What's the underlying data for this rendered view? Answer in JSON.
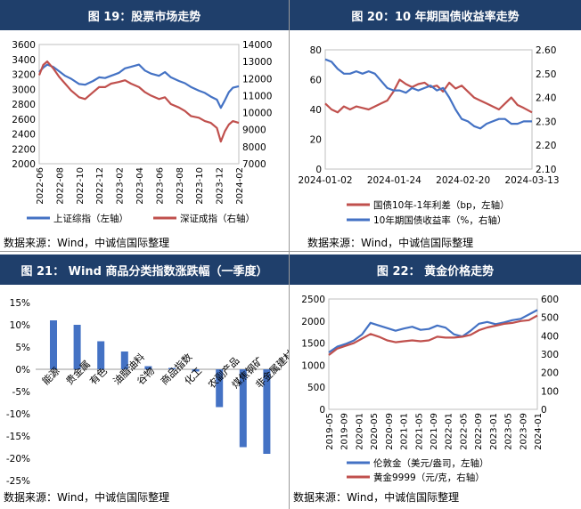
{
  "panels": [
    {
      "title": "图 19：股票市场走势",
      "source": "数据来源：Wind，中诚信国际整理",
      "chart_data": {
        "type": "line",
        "x_ticks": [
          "2022-06",
          "2022-08",
          "2022-10",
          "2022-12",
          "2023-02",
          "2023-04",
          "2023-06",
          "2023-08",
          "2023-10",
          "2023-12",
          "2024-02"
        ],
        "left_axis": {
          "ticks": [
            "2000",
            "2200",
            "2400",
            "2600",
            "2800",
            "3000",
            "3200",
            "3400",
            "3600"
          ],
          "range": [
            2000,
            3600
          ]
        },
        "right_axis": {
          "ticks": [
            "7000",
            "8000",
            "9000",
            "10000",
            "11000",
            "12000",
            "13000",
            "14000"
          ],
          "range": [
            7000,
            14000
          ]
        },
        "legend": "bottom",
        "series": [
          {
            "name": "上证综指（左轴）",
            "axis": "left",
            "color": "#4472c4",
            "x": [
              0,
              0.02,
              0.04,
              0.07,
              0.1,
              0.13,
              0.16,
              0.2,
              0.23,
              0.27,
              0.3,
              0.33,
              0.36,
              0.4,
              0.43,
              0.46,
              0.5,
              0.53,
              0.56,
              0.6,
              0.63,
              0.66,
              0.7,
              0.73,
              0.76,
              0.8,
              0.83,
              0.86,
              0.89,
              0.91,
              0.93,
              0.95,
              0.97,
              1.0
            ],
            "values": [
              3230,
              3290,
              3330,
              3300,
              3240,
              3180,
              3140,
              3070,
              3060,
              3110,
              3160,
              3150,
              3180,
              3220,
              3280,
              3300,
              3330,
              3250,
              3210,
              3180,
              3230,
              3160,
              3110,
              3080,
              3030,
              2980,
              2950,
              2900,
              2860,
              2750,
              2850,
              2960,
              3020,
              3040
            ]
          },
          {
            "name": "深证成指（右轴）",
            "axis": "right",
            "color": "#c0504d",
            "x": [
              0,
              0.02,
              0.04,
              0.07,
              0.1,
              0.13,
              0.16,
              0.2,
              0.23,
              0.27,
              0.3,
              0.33,
              0.36,
              0.4,
              0.43,
              0.46,
              0.5,
              0.53,
              0.56,
              0.6,
              0.63,
              0.66,
              0.7,
              0.73,
              0.76,
              0.8,
              0.83,
              0.86,
              0.89,
              0.91,
              0.93,
              0.95,
              0.97,
              1.0
            ],
            "values": [
              12200,
              12800,
              13000,
              12600,
              12100,
              11700,
              11300,
              10900,
              10800,
              11200,
              11500,
              11500,
              11700,
              11800,
              11900,
              11700,
              11500,
              11200,
              11000,
              10800,
              10900,
              10500,
              10300,
              10100,
              9800,
              9700,
              9500,
              9400,
              9100,
              8300,
              8900,
              9300,
              9500,
              9400
            ]
          }
        ]
      }
    },
    {
      "title": "图 20：10 年期国债收益率走势",
      "source": "数据来源：Wind，中诚信国际整理",
      "chart_data": {
        "type": "line",
        "x_ticks": [
          "2024-01-02",
          "2024-01-24",
          "2024-02-20",
          "2024-03-13"
        ],
        "left_axis": {
          "ticks": [
            "0",
            "20",
            "40",
            "60",
            "80"
          ],
          "range": [
            0,
            80
          ]
        },
        "right_axis": {
          "ticks": [
            "2.10",
            "2.20",
            "2.30",
            "2.40",
            "2.50",
            "2.60"
          ],
          "range": [
            2.1,
            2.6
          ]
        },
        "legend": "bottom",
        "series": [
          {
            "name": "国债10年-1年利差（bp，左轴）",
            "axis": "left",
            "color": "#c0504d",
            "x": [
              0,
              0.03,
              0.06,
              0.09,
              0.12,
              0.15,
              0.18,
              0.21,
              0.24,
              0.27,
              0.3,
              0.33,
              0.36,
              0.39,
              0.42,
              0.45,
              0.48,
              0.51,
              0.54,
              0.57,
              0.6,
              0.63,
              0.66,
              0.69,
              0.72,
              0.75,
              0.78,
              0.81,
              0.84,
              0.87,
              0.9,
              0.93,
              0.96,
              1.0
            ],
            "values": [
              44,
              40,
              38,
              42,
              40,
              42,
              41,
              40,
              42,
              44,
              46,
              52,
              60,
              57,
              55,
              57,
              58,
              55,
              56,
              52,
              58,
              54,
              56,
              52,
              48,
              46,
              44,
              42,
              40,
              44,
              48,
              43,
              41,
              38
            ]
          },
          {
            "name": "10年期国债收益率（%，右轴）",
            "axis": "right",
            "color": "#4472c4",
            "x": [
              0,
              0.03,
              0.06,
              0.09,
              0.12,
              0.15,
              0.18,
              0.21,
              0.24,
              0.27,
              0.3,
              0.33,
              0.36,
              0.39,
              0.42,
              0.45,
              0.48,
              0.51,
              0.54,
              0.57,
              0.6,
              0.63,
              0.66,
              0.69,
              0.72,
              0.75,
              0.78,
              0.81,
              0.84,
              0.87,
              0.9,
              0.93,
              0.96,
              1.0
            ],
            "values": [
              2.56,
              2.55,
              2.52,
              2.5,
              2.5,
              2.51,
              2.5,
              2.51,
              2.5,
              2.47,
              2.44,
              2.43,
              2.43,
              2.42,
              2.44,
              2.43,
              2.44,
              2.45,
              2.43,
              2.44,
              2.4,
              2.35,
              2.31,
              2.3,
              2.28,
              2.27,
              2.29,
              2.3,
              2.31,
              2.31,
              2.29,
              2.29,
              2.3,
              2.3
            ]
          }
        ]
      }
    },
    {
      "title": "图 21：  Wind 商品分类指数涨跌幅（一季度）",
      "source": "数据来源：Wind，中诚信国际整理",
      "chart_data": {
        "type": "bar",
        "categories": [
          "能源",
          "贵金属",
          "有色",
          "油脂油料",
          "谷物",
          "商品指数",
          "化工",
          "农副产品",
          "煤焦钢矿",
          "非金属建材"
        ],
        "values": [
          11.0,
          10.0,
          6.3,
          4.0,
          0.7,
          0.3,
          -0.5,
          -8.5,
          -17.5,
          -19.0
        ],
        "ylim": [
          -25,
          15
        ],
        "y_ticks": [
          "-25%",
          "-20%",
          "-15%",
          "-10%",
          "-5%",
          "0%",
          "5%",
          "10%",
          "15%"
        ],
        "color": "#4472c4"
      }
    },
    {
      "title": "图 22：  黄金价格走势",
      "source": "数据来源：Wind，中诚信国际整理",
      "chart_data": {
        "type": "line",
        "x_ticks": [
          "2019-05",
          "2019-09",
          "2020-01",
          "2020-05",
          "2020-09",
          "2021-01",
          "2021-05",
          "2021-09",
          "2022-01",
          "2022-05",
          "2022-09",
          "2023-01",
          "2023-05",
          "2023-09",
          "2024-01"
        ],
        "left_axis": {
          "ticks": [
            "0",
            "500",
            "1000",
            "1500",
            "2000",
            "2500"
          ],
          "range": [
            0,
            2500
          ]
        },
        "right_axis": {
          "ticks": [
            "0",
            "100",
            "200",
            "300",
            "400",
            "500",
            "600"
          ],
          "range": [
            0,
            600
          ]
        },
        "legend": "bottom",
        "series": [
          {
            "name": "伦敦金（美元/盎司，左轴）",
            "axis": "left",
            "color": "#4472c4",
            "x": [
              0,
              0.04,
              0.08,
              0.12,
              0.16,
              0.2,
              0.24,
              0.28,
              0.32,
              0.36,
              0.4,
              0.44,
              0.48,
              0.52,
              0.56,
              0.6,
              0.64,
              0.68,
              0.72,
              0.76,
              0.8,
              0.84,
              0.88,
              0.92,
              0.96,
              1.0
            ],
            "values": [
              1290,
              1420,
              1480,
              1560,
              1700,
              1960,
              1900,
              1840,
              1780,
              1830,
              1870,
              1800,
              1820,
              1900,
              1850,
              1700,
              1650,
              1780,
              1940,
              1980,
              1930,
              1970,
              2020,
              2050,
              2150,
              2250
            ]
          },
          {
            "name": "黄金9999（元/克，右轴）",
            "axis": "right",
            "color": "#c0504d",
            "x": [
              0,
              0.04,
              0.08,
              0.12,
              0.16,
              0.2,
              0.24,
              0.28,
              0.32,
              0.36,
              0.4,
              0.44,
              0.48,
              0.52,
              0.56,
              0.6,
              0.64,
              0.68,
              0.72,
              0.76,
              0.8,
              0.84,
              0.88,
              0.92,
              0.96,
              1.0
            ],
            "values": [
              295,
              330,
              345,
              360,
              385,
              410,
              395,
              375,
              365,
              370,
              375,
              370,
              375,
              395,
              390,
              390,
              395,
              405,
              430,
              445,
              455,
              465,
              470,
              480,
              485,
              510
            ]
          }
        ]
      }
    }
  ]
}
